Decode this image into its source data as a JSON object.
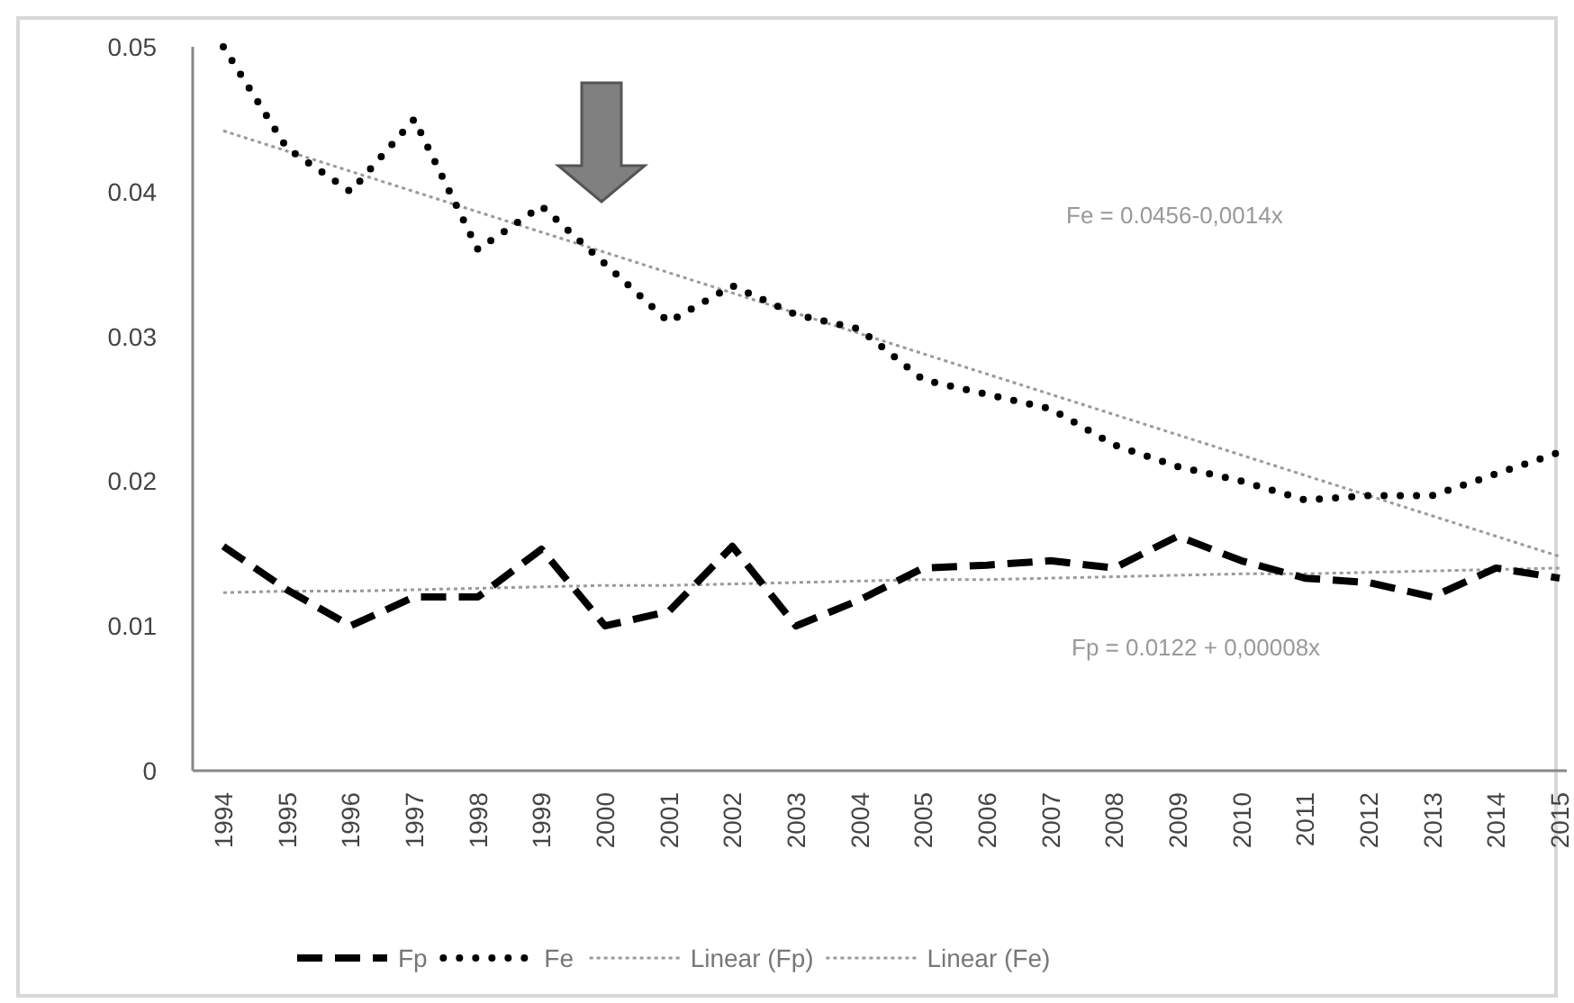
{
  "chart_data": {
    "type": "line",
    "categories": [
      "1994",
      "1995",
      "1996",
      "1997",
      "1998",
      "1999",
      "2000",
      "2001",
      "2002",
      "2003",
      "2004",
      "2005",
      "2006",
      "2007",
      "2008",
      "2009",
      "2010",
      "2011",
      "2012",
      "2013",
      "2014",
      "2015"
    ],
    "series": [
      {
        "name": "Fp",
        "color": "#000000",
        "line_style": "dashed",
        "values": [
          0.0155,
          0.0125,
          0.01,
          0.012,
          0.012,
          0.0153,
          0.01,
          0.011,
          0.0155,
          0.01,
          0.0118,
          0.014,
          0.0142,
          0.0145,
          0.014,
          0.0162,
          0.0145,
          0.0133,
          0.013,
          0.012,
          0.014,
          0.0133
        ]
      },
      {
        "name": "Fe",
        "color": "#000000",
        "line_style": "dotted",
        "values": [
          0.05,
          0.043,
          0.04,
          0.045,
          0.036,
          0.039,
          0.035,
          0.031,
          0.0335,
          0.0315,
          0.0305,
          0.027,
          0.026,
          0.025,
          0.0225,
          0.021,
          0.02,
          0.0187,
          0.019,
          0.019,
          0.0205,
          0.022
        ]
      },
      {
        "name": "Linear (Fp)",
        "color": "#9a9a9a",
        "line_style": "dotted",
        "values": [
          0.0123,
          0.0124,
          0.0124,
          0.0125,
          0.0126,
          0.0127,
          0.0128,
          0.0128,
          0.0129,
          0.013,
          0.0131,
          0.0132,
          0.0132,
          0.0133,
          0.0134,
          0.0135,
          0.0136,
          0.0136,
          0.0137,
          0.0138,
          0.0139,
          0.014
        ]
      },
      {
        "name": "Linear (Fe)",
        "color": "#9a9a9a",
        "line_style": "dotted",
        "values": [
          0.0442,
          0.0428,
          0.0414,
          0.04,
          0.0386,
          0.0372,
          0.0358,
          0.0344,
          0.033,
          0.0316,
          0.0302,
          0.0288,
          0.0274,
          0.026,
          0.0246,
          0.0232,
          0.0218,
          0.0204,
          0.019,
          0.0176,
          0.0162,
          0.0148
        ]
      }
    ],
    "ylim": [
      0,
      0.05
    ],
    "yticks": [
      0,
      0.01,
      0.02,
      0.03,
      0.04,
      0.05
    ],
    "annotations": [
      "Fe = 0.0456-0,0014x",
      "Fp = 0.0122 + 0,00008x"
    ],
    "legend": "bottom",
    "marker": "none",
    "grid": false
  }
}
